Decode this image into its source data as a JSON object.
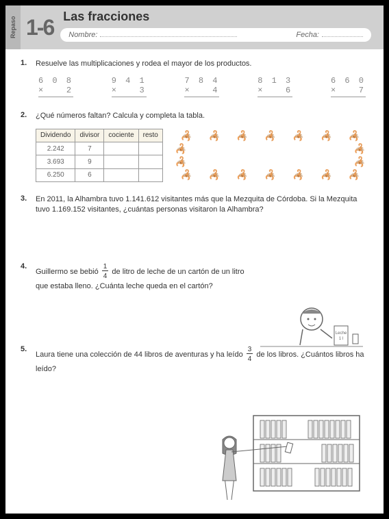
{
  "header": {
    "repaso": "Repaso",
    "lesson": "1-6",
    "title": "Las fracciones",
    "nombre_label": "Nombre:",
    "fecha_label": "Fecha:"
  },
  "p1": {
    "num": "1.",
    "text": "Resuelve las multiplicaciones y rodea el mayor de los productos.",
    "mults": [
      {
        "top": "6 0 8",
        "op": "×",
        "bot": "2"
      },
      {
        "top": "9 4 1",
        "op": "×",
        "bot": "3"
      },
      {
        "top": "7 8 4",
        "op": "×",
        "bot": "4"
      },
      {
        "top": "8 1 3",
        "op": "×",
        "bot": "6"
      },
      {
        "top": "6 6 0",
        "op": "×",
        "bot": "7"
      }
    ]
  },
  "p2": {
    "num": "2.",
    "text": "¿Qué números faltan? Calcula y completa la tabla.",
    "cols": [
      "Dividendo",
      "divisor",
      "cociente",
      "resto"
    ],
    "rows": [
      [
        "2.242",
        "7",
        "",
        ""
      ],
      [
        "3.693",
        "9",
        "",
        ""
      ],
      [
        "6.250",
        "6",
        "",
        ""
      ]
    ]
  },
  "p3": {
    "num": "3.",
    "text": "En 2011, la Alhambra tuvo 1.141.612 visitantes más que la Mezquita de Córdoba. Si la Mezquita tuvo 1.169.152 visitantes, ¿cuántas personas visitaron la Alhambra?"
  },
  "p4": {
    "num": "4.",
    "text_a": "Guillermo se bebió ",
    "frac_n": "1",
    "frac_d": "4",
    "text_b": " de litro de leche de un cartón de un litro que estaba lleno. ¿Cuánta leche queda en el cartón?",
    "carton": "Leche",
    "carton2": "1 l"
  },
  "p5": {
    "num": "5.",
    "text_a": "Laura tiene una colección de 44 libros de aventuras y ha leído ",
    "frac_n": "3",
    "frac_d": "4",
    "text_b": " de los libros. ¿Cuántos libros ha leído?"
  }
}
